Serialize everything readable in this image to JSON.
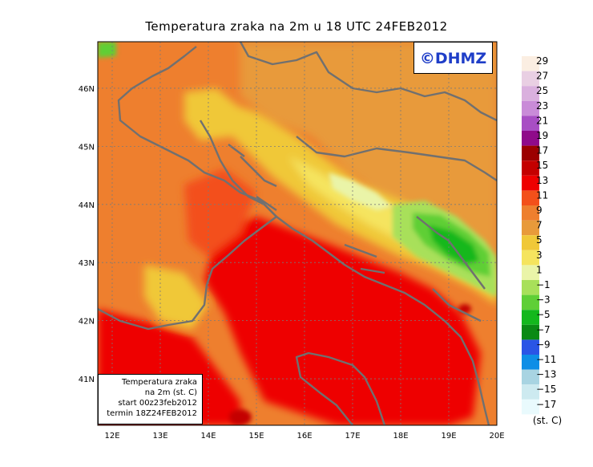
{
  "title": "Temperatura zraka na 2m u 18 UTC 24FEB2012",
  "logo_text": "©DHMZ",
  "info_box": [
    "Temperatura zraka",
    "na 2m (st. C)",
    "start 00z23feb2012",
    "termin 18Z24FEB2012"
  ],
  "lon_labels": [
    "12E",
    "13E",
    "14E",
    "15E",
    "16E",
    "17E",
    "18E",
    "19E",
    "20E"
  ],
  "lat_labels": [
    "41N",
    "42N",
    "43N",
    "44N",
    "45N",
    "46N"
  ],
  "legend": {
    "unit": "(st. C)",
    "labels": [
      "29",
      "27",
      "25",
      "23",
      "21",
      "19",
      "17",
      "15",
      "13",
      "11",
      "9",
      "7",
      "5",
      "3",
      "1",
      "−1",
      "−3",
      "−5",
      "−7",
      "−9",
      "−11",
      "−13",
      "−15",
      "−17"
    ],
    "colors": [
      "#fbeee2",
      "#e9cfe3",
      "#dab0de",
      "#c98bd8",
      "#a84ec4",
      "#8f0a8a",
      "#9c0000",
      "#c40000",
      "#ee0000",
      "#f3501a",
      "#ee7f2e",
      "#e89a3a",
      "#f0c838",
      "#f5e45e",
      "#eaf4a8",
      "#a8e05a",
      "#5fcf36",
      "#13b81d",
      "#0a8a14",
      "#2a55e6",
      "#0e8ee6",
      "#a8d4e2",
      "#cdeaf0",
      "#e9fafd"
    ]
  },
  "map": {
    "lon_range": [
      11.7,
      20.0
    ],
    "lat_range": [
      40.2,
      46.8
    ],
    "gridlines": true,
    "field_type": "filled-contour temperature",
    "colors": {
      "sea_warm": "#ee0000",
      "land_mild": "#ee7f2e",
      "inland": "#e89a3a",
      "highland_warm": "#f0c838",
      "highland": "#f5e45e",
      "mountain": "#eaf4a8",
      "cold": "#a8e05a",
      "colder": "#5fcf36",
      "coldest": "#13b81d",
      "hot_spot": "#c40000",
      "coast": "#707070"
    }
  }
}
